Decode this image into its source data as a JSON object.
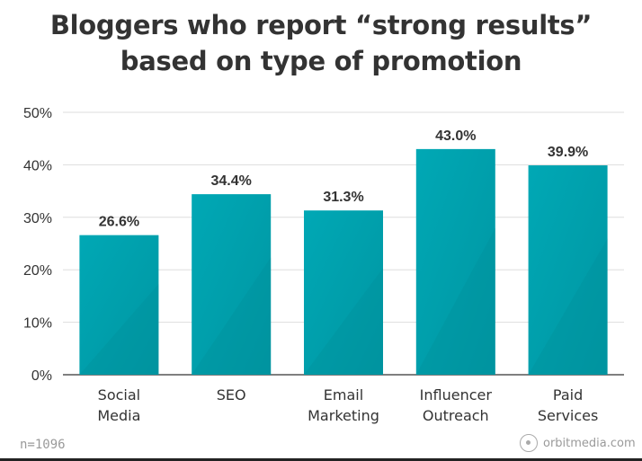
{
  "chart_data": {
    "type": "bar",
    "title_lines": [
      "Bloggers who report “strong results”",
      "based on type of promotion"
    ],
    "categories": [
      [
        "Social",
        "Media"
      ],
      [
        "SEO"
      ],
      [
        "Email",
        "Marketing"
      ],
      [
        "Influencer",
        "Outreach"
      ],
      [
        "Paid",
        "Services"
      ]
    ],
    "values": [
      26.6,
      34.4,
      31.3,
      43.0,
      39.9
    ],
    "value_labels": [
      "26.6%",
      "34.4%",
      "31.3%",
      "43.0%",
      "39.9%"
    ],
    "ylim": [
      0,
      50
    ],
    "y_ticks": [
      0,
      10,
      20,
      30,
      40,
      50
    ],
    "y_tick_labels": [
      "0%",
      "10%",
      "20%",
      "30%",
      "40%",
      "50%"
    ],
    "grid": true,
    "bar_color": "#00a3b0",
    "bar_color_dark": "#008f9b"
  },
  "footer": {
    "sample": "n=1096",
    "brand": "orbitmedia.com"
  }
}
